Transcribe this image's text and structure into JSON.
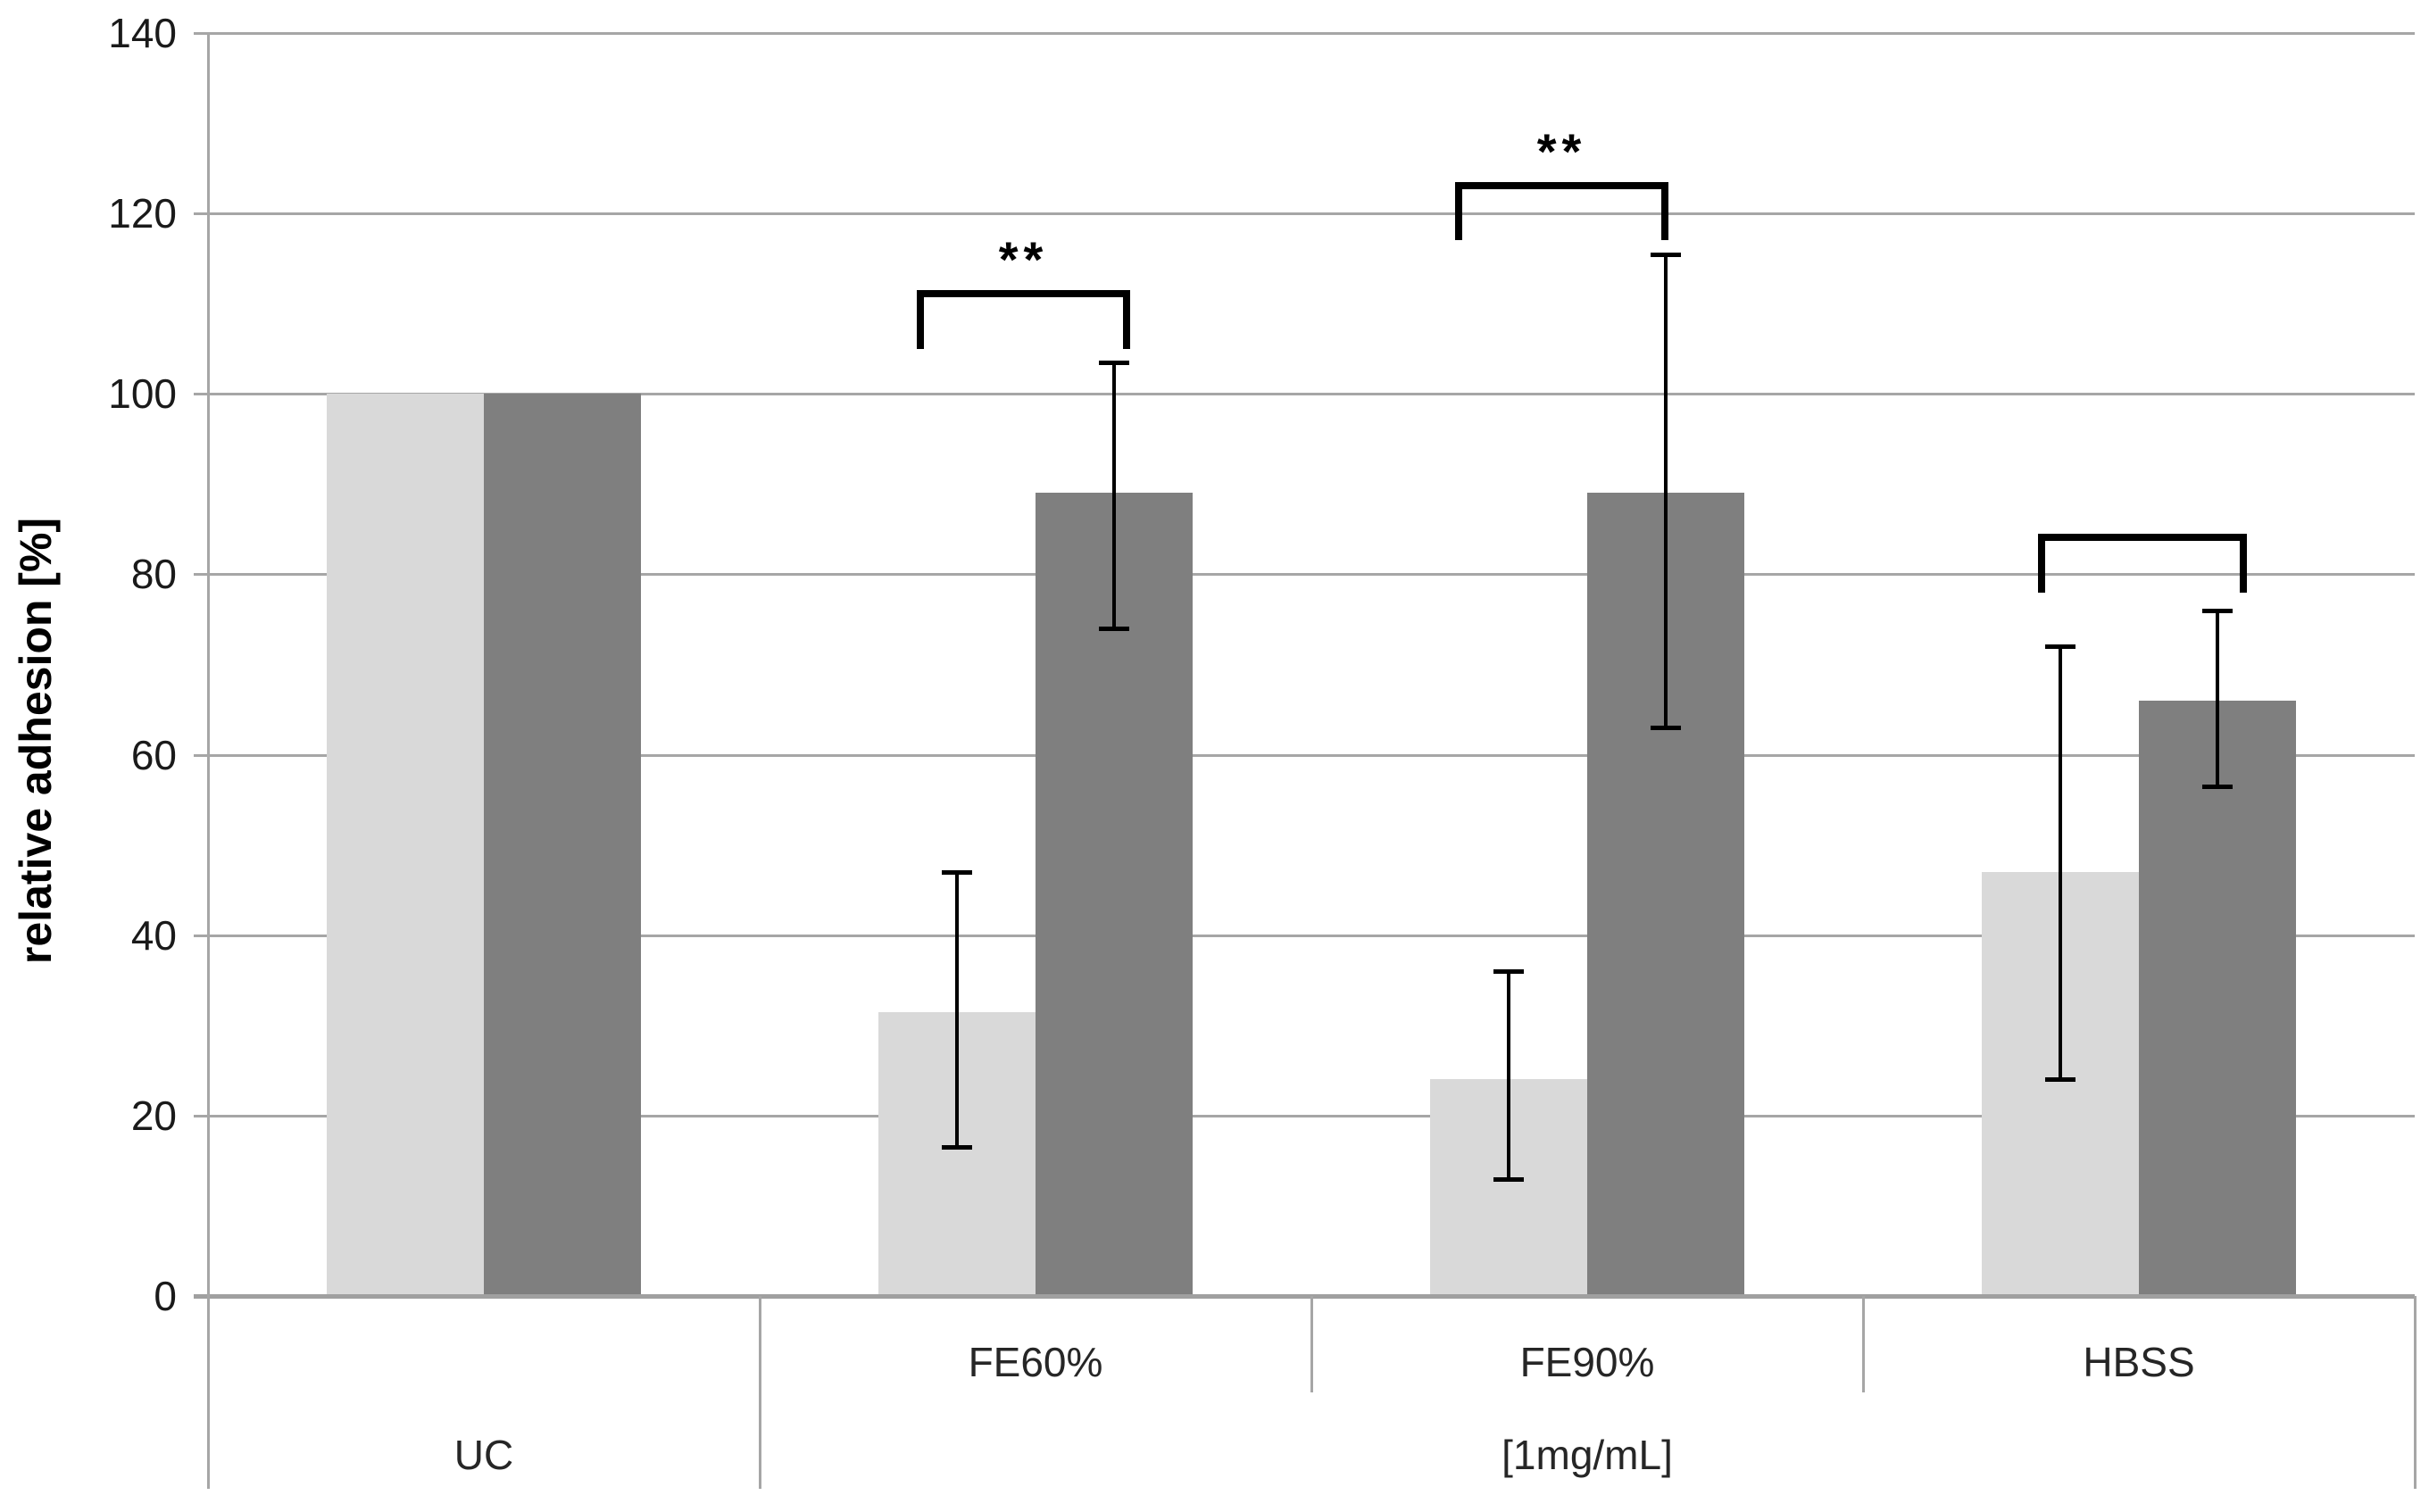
{
  "page": {
    "background": "#ffffff"
  },
  "chart_data": {
    "type": "bar",
    "title": "",
    "xlabel": "",
    "ylabel": "relative adhesion [%]",
    "ylim": [
      0,
      140
    ],
    "ytick_step": 20,
    "ytick_values": [
      0,
      20,
      40,
      60,
      80,
      100,
      120,
      140
    ],
    "ytick_labels": [
      "0",
      "20",
      "40",
      "60",
      "80",
      "100",
      "120",
      "140"
    ],
    "grid": true,
    "legend": false,
    "categories": [
      "UC",
      "FE60%",
      "FE90%",
      "HBSS"
    ],
    "category_group_labels": [
      {
        "label": "UC",
        "start": 0,
        "end": 0
      },
      {
        "label": "[1mg/mL]",
        "start": 1,
        "end": 3
      }
    ],
    "series": [
      {
        "name": "light-gray-series",
        "color": "#d9d9d9",
        "values": [
          100,
          31.5,
          24,
          47
        ],
        "error_low": [
          null,
          16.5,
          13,
          24
        ],
        "error_high": [
          null,
          47,
          36,
          72
        ]
      },
      {
        "name": "dark-gray-series",
        "color": "#7f7f7f",
        "values": [
          100,
          89,
          89,
          66
        ],
        "error_low": [
          null,
          74,
          63,
          56.5
        ],
        "error_high": [
          null,
          103.5,
          115.5,
          76
        ]
      }
    ],
    "significance_brackets": [
      {
        "category": "FE60%",
        "label": "**",
        "top_value": 111.5,
        "leg_bottom_value": 105
      },
      {
        "category": "FE90%",
        "label": "**",
        "top_value": 123.5,
        "leg_bottom_value": 117
      },
      {
        "category": "HBSS",
        "label": "",
        "top_value": 84.5,
        "leg_bottom_value": 78
      }
    ],
    "colors": {
      "gridline": "#a6a6a6",
      "axis": "#a6a6a6",
      "baseline": "#a0a0a0",
      "error_bar": "#000000",
      "bracket": "#000000",
      "tick_text": "#1a1a1a",
      "category_text": "#262626"
    }
  }
}
